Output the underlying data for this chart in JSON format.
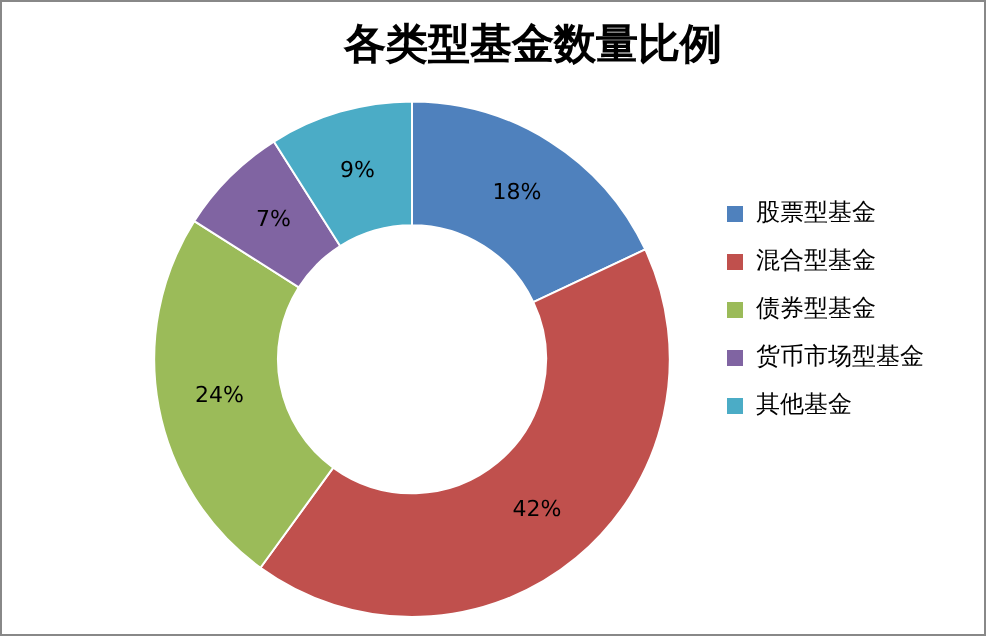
{
  "chart_data": {
    "type": "donut",
    "title": "各类型基金数量比例",
    "categories": [
      "股票型基金",
      "混合型基金",
      "债券型基金",
      "货币市场型基金",
      "其他基金"
    ],
    "values": [
      18,
      42,
      24,
      7,
      9
    ],
    "value_labels": [
      "18%",
      "42%",
      "24%",
      "7%",
      "9%"
    ],
    "colors": [
      "#4f81bd",
      "#c0504d",
      "#9bbb59",
      "#8064a2",
      "#4bacc6"
    ],
    "legend": "right"
  }
}
